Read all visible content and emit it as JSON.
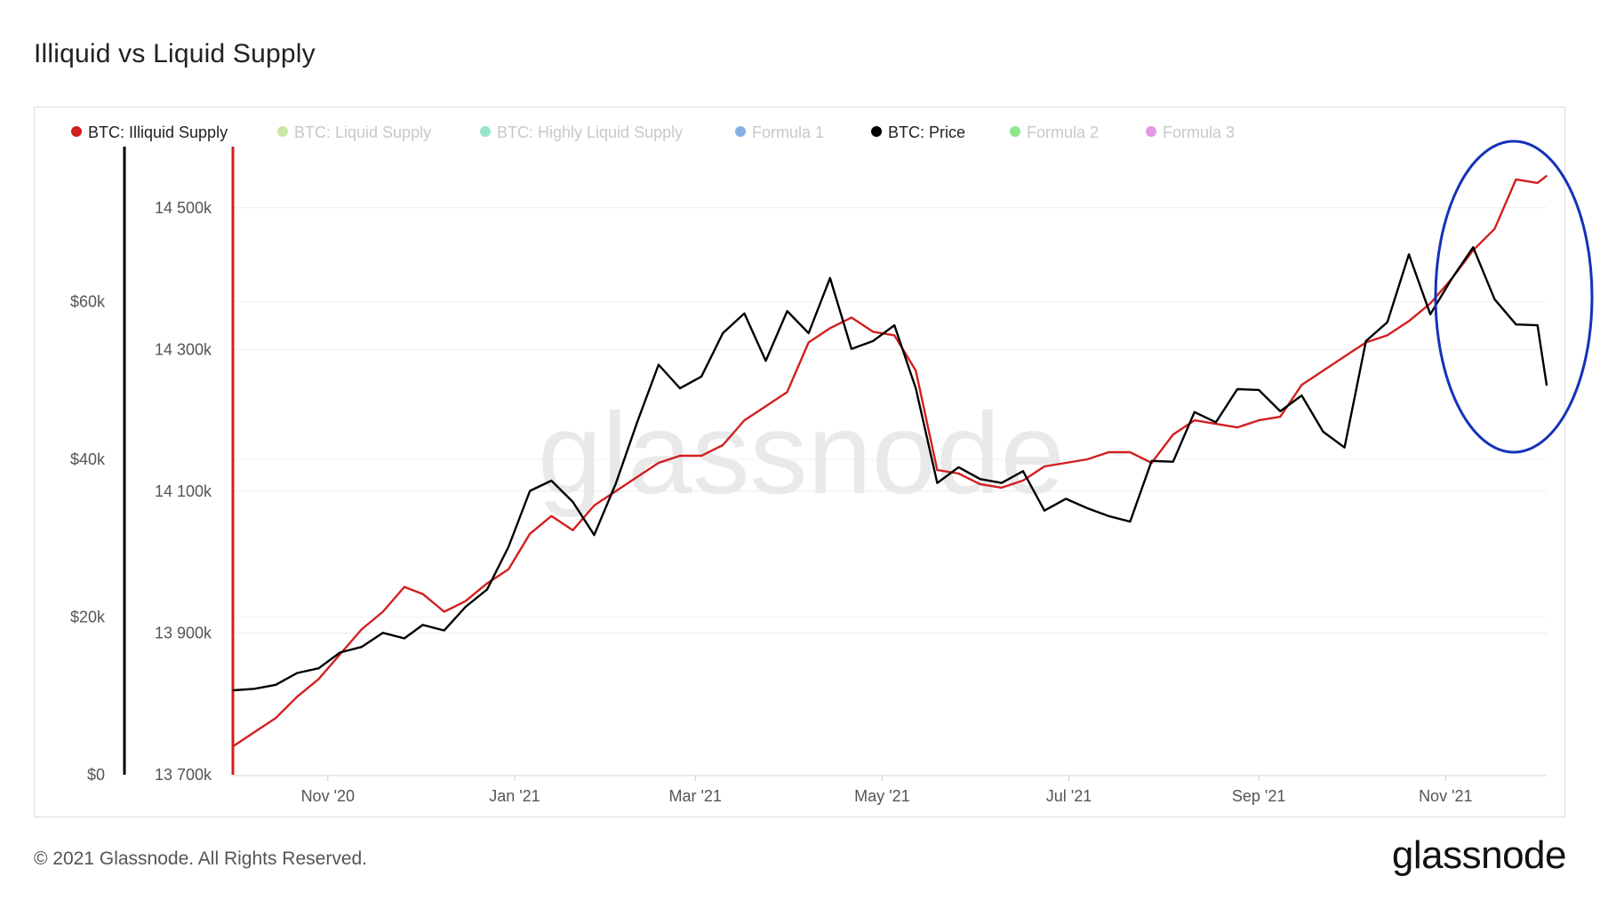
{
  "page": {
    "title": "Illiquid vs Liquid Supply",
    "footer": "© 2021 Glassnode. All Rights Reserved.",
    "logo": "glassnode",
    "watermark": "glassnode"
  },
  "chart_data": {
    "type": "line",
    "title": "Illiquid vs Liquid Supply",
    "x_start": "2020-10-01",
    "x_end": "2021-12-04",
    "x_ticks": [
      {
        "date": "2020-11-01",
        "label": "Nov '20"
      },
      {
        "date": "2021-01-01",
        "label": "Jan '21"
      },
      {
        "date": "2021-03-01",
        "label": "Mar '21"
      },
      {
        "date": "2021-05-01",
        "label": "May '21"
      },
      {
        "date": "2021-07-01",
        "label": "Jul '21"
      },
      {
        "date": "2021-09-01",
        "label": "Sep '21"
      },
      {
        "date": "2021-11-01",
        "label": "Nov '21"
      }
    ],
    "left_axis": {
      "series": "BTC: Price",
      "ylim": [
        0,
        80000
      ],
      "ticks": [
        0,
        20000,
        40000,
        60000
      ],
      "tick_labels": [
        "$0",
        "$20k",
        "$40k",
        "$60k"
      ],
      "color": "#000000"
    },
    "right_axis": {
      "series": "BTC: Illiquid Supply",
      "ylim": [
        13700000,
        14590000
      ],
      "ticks": [
        13700000,
        13900000,
        14100000,
        14300000,
        14500000
      ],
      "tick_labels": [
        "13 700k",
        "13 900k",
        "14 100k",
        "14 300k",
        "14 500k"
      ],
      "color": "#d21f1f"
    },
    "grid": true,
    "legend_position": "top",
    "legend": [
      {
        "name": "BTC: Illiquid Supply",
        "color": "#d21f1f",
        "active": true
      },
      {
        "name": "BTC: Liquid Supply",
        "color": "#9ad35a",
        "active": false
      },
      {
        "name": "BTC: Highly Liquid Supply",
        "color": "#3fcf9a",
        "active": false
      },
      {
        "name": "Formula 1",
        "color": "#1f6fd0",
        "active": false
      },
      {
        "name": "BTC: Price",
        "color": "#000000",
        "active": true
      },
      {
        "name": "Formula 2",
        "color": "#29d629",
        "active": false
      },
      {
        "name": "Formula 3",
        "color": "#cc44cc",
        "active": false
      }
    ],
    "annotation": {
      "shape": "ellipse",
      "color": "#1432b8",
      "around": "Nov '21 period"
    },
    "series": [
      {
        "name": "BTC: Illiquid Supply",
        "axis": "right",
        "color": "#d21f1f",
        "points": [
          [
            "2020-10-01",
            13740000
          ],
          [
            "2020-10-08",
            13760000
          ],
          [
            "2020-10-15",
            13780000
          ],
          [
            "2020-10-22",
            13810000
          ],
          [
            "2020-10-29",
            13835000
          ],
          [
            "2020-11-05",
            13870000
          ],
          [
            "2020-11-12",
            13905000
          ],
          [
            "2020-11-19",
            13930000
          ],
          [
            "2020-11-26",
            13965000
          ],
          [
            "2020-12-02",
            13955000
          ],
          [
            "2020-12-09",
            13930000
          ],
          [
            "2020-12-16",
            13945000
          ],
          [
            "2020-12-23",
            13970000
          ],
          [
            "2020-12-30",
            13990000
          ],
          [
            "2021-01-06",
            14040000
          ],
          [
            "2021-01-13",
            14065000
          ],
          [
            "2021-01-20",
            14045000
          ],
          [
            "2021-01-27",
            14080000
          ],
          [
            "2021-02-03",
            14100000
          ],
          [
            "2021-02-10",
            14120000
          ],
          [
            "2021-02-17",
            14140000
          ],
          [
            "2021-02-24",
            14150000
          ],
          [
            "2021-03-03",
            14150000
          ],
          [
            "2021-03-10",
            14165000
          ],
          [
            "2021-03-17",
            14200000
          ],
          [
            "2021-03-24",
            14220000
          ],
          [
            "2021-03-31",
            14240000
          ],
          [
            "2021-04-07",
            14310000
          ],
          [
            "2021-04-14",
            14330000
          ],
          [
            "2021-04-21",
            14345000
          ],
          [
            "2021-04-28",
            14325000
          ],
          [
            "2021-05-05",
            14320000
          ],
          [
            "2021-05-12",
            14270000
          ],
          [
            "2021-05-19",
            14130000
          ],
          [
            "2021-05-26",
            14125000
          ],
          [
            "2021-06-02",
            14110000
          ],
          [
            "2021-06-09",
            14105000
          ],
          [
            "2021-06-16",
            14115000
          ],
          [
            "2021-06-23",
            14135000
          ],
          [
            "2021-06-30",
            14140000
          ],
          [
            "2021-07-07",
            14145000
          ],
          [
            "2021-07-14",
            14155000
          ],
          [
            "2021-07-21",
            14155000
          ],
          [
            "2021-07-28",
            14140000
          ],
          [
            "2021-08-04",
            14180000
          ],
          [
            "2021-08-11",
            14200000
          ],
          [
            "2021-08-18",
            14195000
          ],
          [
            "2021-08-25",
            14190000
          ],
          [
            "2021-09-01",
            14200000
          ],
          [
            "2021-09-08",
            14205000
          ],
          [
            "2021-09-15",
            14250000
          ],
          [
            "2021-09-22",
            14270000
          ],
          [
            "2021-09-29",
            14290000
          ],
          [
            "2021-10-06",
            14310000
          ],
          [
            "2021-10-13",
            14320000
          ],
          [
            "2021-10-20",
            14340000
          ],
          [
            "2021-10-27",
            14365000
          ],
          [
            "2021-11-03",
            14400000
          ],
          [
            "2021-11-10",
            14440000
          ],
          [
            "2021-11-17",
            14470000
          ],
          [
            "2021-11-24",
            14540000
          ],
          [
            "2021-12-01",
            14535000
          ],
          [
            "2021-12-04",
            14545000
          ]
        ]
      },
      {
        "name": "BTC: Price",
        "axis": "left",
        "color": "#000000",
        "points": [
          [
            "2020-10-01",
            10700
          ],
          [
            "2020-10-08",
            10900
          ],
          [
            "2020-10-15",
            11400
          ],
          [
            "2020-10-22",
            12900
          ],
          [
            "2020-10-29",
            13500
          ],
          [
            "2020-11-05",
            15500
          ],
          [
            "2020-11-12",
            16200
          ],
          [
            "2020-11-19",
            18000
          ],
          [
            "2020-11-26",
            17300
          ],
          [
            "2020-12-02",
            19000
          ],
          [
            "2020-12-09",
            18300
          ],
          [
            "2020-12-16",
            21300
          ],
          [
            "2020-12-23",
            23500
          ],
          [
            "2020-12-30",
            28900
          ],
          [
            "2021-01-06",
            36000
          ],
          [
            "2021-01-13",
            37300
          ],
          [
            "2021-01-20",
            34600
          ],
          [
            "2021-01-27",
            30400
          ],
          [
            "2021-02-03",
            36900
          ],
          [
            "2021-02-10",
            44700
          ],
          [
            "2021-02-17",
            52000
          ],
          [
            "2021-02-24",
            49000
          ],
          [
            "2021-03-03",
            50500
          ],
          [
            "2021-03-10",
            56000
          ],
          [
            "2021-03-17",
            58500
          ],
          [
            "2021-03-24",
            52500
          ],
          [
            "2021-03-31",
            58800
          ],
          [
            "2021-04-07",
            56000
          ],
          [
            "2021-04-14",
            63000
          ],
          [
            "2021-04-21",
            54000
          ],
          [
            "2021-04-28",
            55000
          ],
          [
            "2021-05-05",
            57000
          ],
          [
            "2021-05-12",
            49000
          ],
          [
            "2021-05-19",
            37000
          ],
          [
            "2021-05-26",
            39000
          ],
          [
            "2021-06-02",
            37500
          ],
          [
            "2021-06-09",
            37000
          ],
          [
            "2021-06-16",
            38500
          ],
          [
            "2021-06-23",
            33500
          ],
          [
            "2021-06-30",
            35000
          ],
          [
            "2021-07-07",
            33800
          ],
          [
            "2021-07-14",
            32800
          ],
          [
            "2021-07-21",
            32100
          ],
          [
            "2021-07-28",
            39800
          ],
          [
            "2021-08-04",
            39700
          ],
          [
            "2021-08-11",
            46000
          ],
          [
            "2021-08-18",
            44700
          ],
          [
            "2021-08-25",
            48900
          ],
          [
            "2021-09-01",
            48800
          ],
          [
            "2021-09-08",
            46100
          ],
          [
            "2021-09-15",
            48100
          ],
          [
            "2021-09-22",
            43500
          ],
          [
            "2021-09-29",
            41500
          ],
          [
            "2021-10-06",
            55000
          ],
          [
            "2021-10-13",
            57400
          ],
          [
            "2021-10-20",
            66000
          ],
          [
            "2021-10-27",
            58400
          ],
          [
            "2021-11-03",
            62900
          ],
          [
            "2021-11-10",
            66900
          ],
          [
            "2021-11-17",
            60300
          ],
          [
            "2021-11-24",
            57100
          ],
          [
            "2021-12-01",
            57000
          ],
          [
            "2021-12-04",
            49400
          ]
        ]
      }
    ]
  }
}
